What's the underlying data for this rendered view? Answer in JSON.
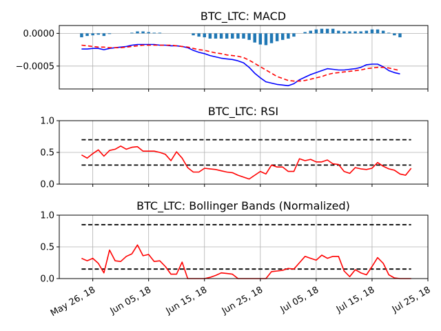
{
  "chart_data": [
    {
      "type": "bar+line",
      "title": "BTC_LTC: MACD",
      "ylim": [
        -0.00085,
        0.00012
      ],
      "yticks": [
        0.0,
        -0.0005
      ],
      "ytick_labels": [
        "0.0000",
        "−0.0005"
      ],
      "grid": true,
      "series": [
        {
          "kind": "bar",
          "color": "#1f77b4",
          "values": [
            -6e-05,
            -4e-05,
            -3e-05,
            -2e-05,
            -4e-05,
            -1e-05,
            0.0,
            0.0,
            0.0,
            1e-05,
            3e-05,
            3e-05,
            2e-05,
            1e-05,
            1e-05,
            0.0,
            0.0,
            0.0,
            0.0,
            0.0,
            -3e-05,
            -5e-05,
            -6e-05,
            -8e-05,
            -8e-05,
            -8e-05,
            -8e-05,
            -8e-05,
            -8e-05,
            -8e-05,
            -0.0001,
            -0.00014,
            -0.00017,
            -0.00018,
            -0.00015,
            -0.00012,
            -0.0001,
            -8e-05,
            -5e-05,
            0.0,
            2e-05,
            4e-05,
            6e-05,
            7e-05,
            7e-05,
            7e-05,
            4e-05,
            3e-05,
            3e-05,
            3e-05,
            3e-05,
            4e-05,
            6e-05,
            6e-05,
            4e-05,
            1e-05,
            -3e-05,
            -6e-05
          ]
        },
        {
          "kind": "line",
          "name": "macd",
          "color": "#0000ff",
          "style": "solid",
          "values": [
            -0.00024,
            -0.00024,
            -0.00023,
            -0.00023,
            -0.00025,
            -0.00023,
            -0.00022,
            -0.00021,
            -0.0002,
            -0.00018,
            -0.00017,
            -0.00017,
            -0.00017,
            -0.00017,
            -0.00018,
            -0.00018,
            -0.00019,
            -0.00019,
            -0.0002,
            -0.00022,
            -0.00026,
            -0.00029,
            -0.00031,
            -0.00034,
            -0.00036,
            -0.00038,
            -0.00039,
            -0.0004,
            -0.00042,
            -0.00045,
            -0.00052,
            -0.00061,
            -0.00068,
            -0.00074,
            -0.00076,
            -0.00078,
            -0.00079,
            -0.0008,
            -0.00077,
            -0.00071,
            -0.00067,
            -0.00063,
            -0.0006,
            -0.00057,
            -0.00054,
            -0.00055,
            -0.00056,
            -0.00056,
            -0.00055,
            -0.00054,
            -0.00052,
            -0.00048,
            -0.00047,
            -0.00047,
            -0.00051,
            -0.00057,
            -0.0006,
            -0.00062
          ]
        },
        {
          "kind": "line",
          "name": "signal",
          "color": "#ff0000",
          "style": "dashed",
          "values": [
            -0.00018,
            -0.00019,
            -0.0002,
            -0.00021,
            -0.00021,
            -0.00022,
            -0.00022,
            -0.00022,
            -0.00021,
            -0.0002,
            -0.00019,
            -0.00018,
            -0.00018,
            -0.00018,
            -0.00018,
            -0.00018,
            -0.00018,
            -0.00019,
            -0.0002,
            -0.00021,
            -0.00023,
            -0.00025,
            -0.00026,
            -0.00028,
            -0.0003,
            -0.00031,
            -0.00033,
            -0.00034,
            -0.00035,
            -0.00037,
            -0.00041,
            -0.00046,
            -0.00051,
            -0.00056,
            -0.00061,
            -0.00066,
            -0.00069,
            -0.00072,
            -0.00073,
            -0.00073,
            -0.00072,
            -0.0007,
            -0.00068,
            -0.00066,
            -0.00063,
            -0.00061,
            -0.0006,
            -0.00059,
            -0.00058,
            -0.00057,
            -0.00056,
            -0.00054,
            -0.00053,
            -0.00052,
            -0.00052,
            -0.00053,
            -0.00055,
            -0.00057
          ]
        }
      ]
    },
    {
      "type": "line",
      "title": "BTC_LTC: RSI",
      "ylim": [
        0.0,
        1.0
      ],
      "yticks": [
        0.0,
        0.5,
        1.0
      ],
      "ytick_labels": [
        "0.0",
        "0.5",
        "1.0"
      ],
      "grid": true,
      "hlines": [
        0.7,
        0.3
      ],
      "series": [
        {
          "kind": "line",
          "name": "rsi",
          "color": "#ff0000",
          "style": "solid",
          "values": [
            0.46,
            0.41,
            0.48,
            0.54,
            0.44,
            0.53,
            0.55,
            0.6,
            0.55,
            0.58,
            0.59,
            0.52,
            0.52,
            0.52,
            0.5,
            0.47,
            0.37,
            0.51,
            0.41,
            0.26,
            0.19,
            0.19,
            0.25,
            0.24,
            0.23,
            0.21,
            0.19,
            0.18,
            0.14,
            0.11,
            0.08,
            0.14,
            0.2,
            0.16,
            0.3,
            0.27,
            0.27,
            0.2,
            0.2,
            0.4,
            0.37,
            0.39,
            0.35,
            0.35,
            0.38,
            0.32,
            0.31,
            0.2,
            0.17,
            0.26,
            0.24,
            0.23,
            0.25,
            0.34,
            0.28,
            0.24,
            0.22,
            0.16,
            0.14,
            0.25
          ]
        }
      ]
    },
    {
      "type": "line",
      "title": "BTC_LTC: Bollinger Bands (Normalized)",
      "ylim": [
        0.0,
        1.0
      ],
      "yticks": [
        0.0,
        0.5,
        1.0
      ],
      "ytick_labels": [
        "0.0",
        "0.5",
        "1.0"
      ],
      "grid": true,
      "hlines": [
        0.85,
        0.15
      ],
      "series": [
        {
          "kind": "line",
          "name": "bollinger",
          "color": "#ff0000",
          "style": "solid",
          "values": [
            0.32,
            0.28,
            0.32,
            0.24,
            0.09,
            0.45,
            0.28,
            0.27,
            0.35,
            0.39,
            0.53,
            0.36,
            0.38,
            0.27,
            0.28,
            0.19,
            0.07,
            0.07,
            0.26,
            0.0,
            0.0,
            0.0,
            0.0,
            0.02,
            0.05,
            0.09,
            0.08,
            0.07,
            0.0,
            0.0,
            0.0,
            0.0,
            0.0,
            0.0,
            0.11,
            0.12,
            0.13,
            0.16,
            0.15,
            0.25,
            0.35,
            0.32,
            0.29,
            0.37,
            0.32,
            0.35,
            0.35,
            0.12,
            0.03,
            0.14,
            0.09,
            0.06,
            0.19,
            0.33,
            0.24,
            0.06,
            0.01,
            0.0,
            0.0,
            0.0
          ]
        }
      ]
    }
  ],
  "x_axis": {
    "tick_labels": [
      "May 26, 18",
      "Jun 05, 18",
      "Jun 15, 18",
      "Jun 25, 18",
      "Jul 05, 18",
      "Jul 15, 18",
      "Jul 25, 18"
    ],
    "tick_dates": [
      "2018-05-26",
      "2018-06-05",
      "2018-06-15",
      "2018-06-25",
      "2018-07-05",
      "2018-07-15",
      "2018-07-25"
    ],
    "range": [
      "2018-05-20",
      "2018-07-25"
    ],
    "series_start": "2018-05-24"
  }
}
